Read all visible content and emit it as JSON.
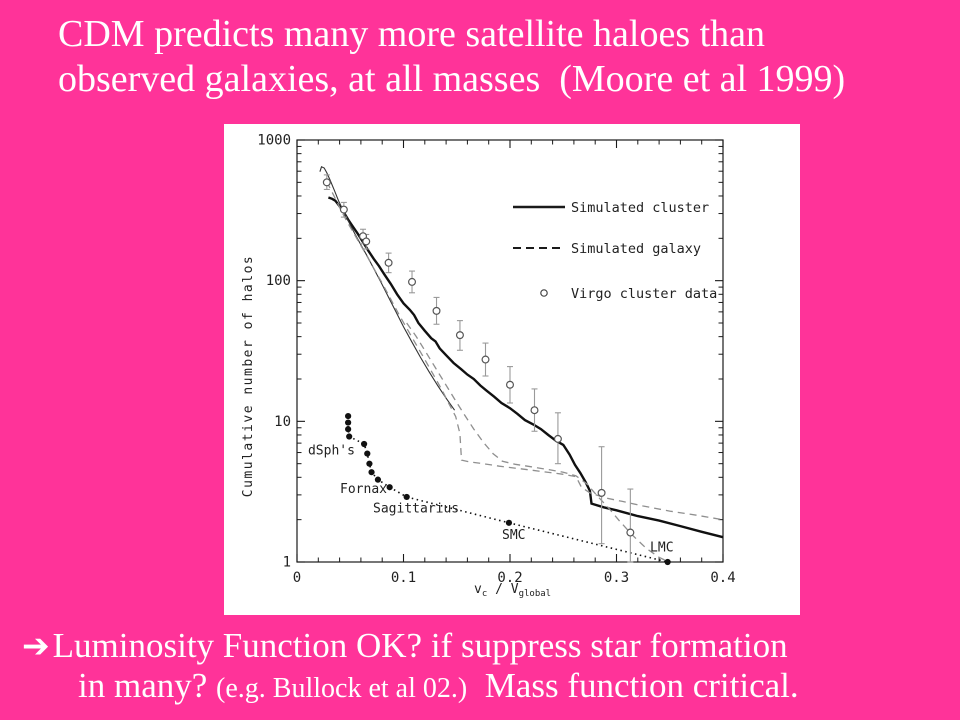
{
  "slide": {
    "background_color": "#ff3399",
    "text_color": "#ffffff",
    "title_line1": "CDM predicts many more satellite haloes than",
    "title_line2": "observed galaxies, at all masses  (Moore et al 1999)",
    "bottom": {
      "arrow_icon": "➔",
      "line1": "Luminosity Function OK? if suppress star formation",
      "line2_main": "in many? ",
      "line2_cite": "(e.g. Bullock et al 02.)",
      "line2_tail": "  Mass function critical."
    }
  },
  "chart_data": {
    "type": "line",
    "title": "",
    "ylabel": "Cumulative number of halos",
    "xlabel_parts": {
      "base1": "v",
      "sub1": "c",
      "mid": " / V",
      "sub2": "global"
    },
    "xlim": [
      0,
      0.4
    ],
    "ylim": [
      1,
      1000
    ],
    "y_scale": "log",
    "x_minor_step": 0.02,
    "x_ticks": [
      {
        "v": 0,
        "label": "0"
      },
      {
        "v": 0.1,
        "label": "0.1"
      },
      {
        "v": 0.2,
        "label": "0.2"
      },
      {
        "v": 0.3,
        "label": "0.3"
      },
      {
        "v": 0.4,
        "label": "0.4"
      }
    ],
    "y_ticks": [
      {
        "n": 1,
        "label": "1"
      },
      {
        "n": 10,
        "label": "10"
      },
      {
        "n": 100,
        "label": "100"
      },
      {
        "n": 1000,
        "label": "1000"
      }
    ],
    "ink_color": "#1a1a1a",
    "gray_color": "#8f8f8f",
    "legend": [
      {
        "label": "Simulated cluster",
        "style": "solid-thick"
      },
      {
        "label": "Simulated galaxy",
        "style": "dashed"
      },
      {
        "label": "Virgo cluster data",
        "style": "open-circle"
      }
    ],
    "series": [
      {
        "name": "simulated-cluster",
        "style": "solid",
        "width": 2.4,
        "color": "#111111",
        "points": [
          [
            0.0295,
            390
          ],
          [
            0.033,
            382
          ],
          [
            0.036,
            370
          ],
          [
            0.04,
            338
          ],
          [
            0.044,
            305
          ],
          [
            0.048,
            272
          ],
          [
            0.052,
            245
          ],
          [
            0.057,
            216
          ],
          [
            0.062,
            188
          ],
          [
            0.067,
            163
          ],
          [
            0.072,
            143
          ],
          [
            0.077,
            127
          ],
          [
            0.082,
            111
          ],
          [
            0.088,
            95
          ],
          [
            0.094,
            80
          ],
          [
            0.1,
            69
          ],
          [
            0.106,
            62
          ],
          [
            0.11,
            57
          ],
          [
            0.114,
            50
          ],
          [
            0.12,
            44
          ],
          [
            0.126,
            39
          ],
          [
            0.13,
            37
          ],
          [
            0.134,
            33
          ],
          [
            0.14,
            29.5
          ],
          [
            0.147,
            26
          ],
          [
            0.154,
            23.5
          ],
          [
            0.16,
            21.5
          ],
          [
            0.166,
            20
          ],
          [
            0.172,
            18
          ],
          [
            0.178,
            16.5
          ],
          [
            0.185,
            15
          ],
          [
            0.192,
            13.5
          ],
          [
            0.2,
            12.4
          ],
          [
            0.207,
            11.3
          ],
          [
            0.214,
            10.2
          ],
          [
            0.222,
            9.5
          ],
          [
            0.229,
            8.8
          ],
          [
            0.236,
            8.0
          ],
          [
            0.243,
            7.3
          ],
          [
            0.25,
            6.8
          ],
          [
            0.256,
            5.8
          ],
          [
            0.261,
            4.9
          ],
          [
            0.266,
            4.3
          ],
          [
            0.271,
            3.7
          ],
          [
            0.275,
            3.2
          ],
          [
            0.2765,
            2.6
          ],
          [
            0.288,
            2.45
          ],
          [
            0.3,
            2.33
          ],
          [
            0.32,
            2.12
          ],
          [
            0.34,
            1.97
          ],
          [
            0.36,
            1.8
          ],
          [
            0.38,
            1.64
          ],
          [
            0.4,
            1.5
          ]
        ]
      },
      {
        "name": "simulated-cluster-thin",
        "style": "solid",
        "width": 1.1,
        "color": "#333333",
        "points": [
          [
            0.0215,
            595
          ],
          [
            0.023,
            645
          ],
          [
            0.0255,
            632
          ],
          [
            0.028,
            585
          ],
          [
            0.031,
            520
          ],
          [
            0.035,
            440
          ],
          [
            0.039,
            370
          ],
          [
            0.044,
            308
          ],
          [
            0.049,
            258
          ],
          [
            0.054,
            218
          ],
          [
            0.06,
            180
          ],
          [
            0.066,
            149
          ],
          [
            0.072,
            122
          ],
          [
            0.079,
            97
          ],
          [
            0.086,
            76
          ],
          [
            0.093,
            60
          ],
          [
            0.1,
            47
          ],
          [
            0.108,
            36.5
          ],
          [
            0.116,
            28.5
          ],
          [
            0.124,
            22.5
          ],
          [
            0.132,
            18
          ],
          [
            0.14,
            14.6
          ],
          [
            0.148,
            12
          ]
        ]
      },
      {
        "name": "simulated-galaxy-a",
        "style": "dashed",
        "width": 1.3,
        "color": "#8f8f8f",
        "points": [
          [
            0.028,
            505
          ],
          [
            0.032,
            440
          ],
          [
            0.037,
            370
          ],
          [
            0.042,
            310
          ],
          [
            0.047,
            262
          ],
          [
            0.053,
            220
          ],
          [
            0.059,
            183
          ],
          [
            0.066,
            148
          ],
          [
            0.073,
            119
          ],
          [
            0.08,
            96
          ],
          [
            0.088,
            74
          ],
          [
            0.096,
            57
          ],
          [
            0.104,
            44.5
          ],
          [
            0.112,
            35
          ],
          [
            0.12,
            27.5
          ],
          [
            0.128,
            21.5
          ],
          [
            0.136,
            16.8
          ],
          [
            0.143,
            13.2
          ],
          [
            0.149,
            10.8
          ],
          [
            0.153,
            8.2
          ],
          [
            0.1545,
            5.3
          ],
          [
            0.162,
            5.15
          ],
          [
            0.175,
            5.0
          ],
          [
            0.19,
            4.8
          ],
          [
            0.21,
            4.6
          ],
          [
            0.23,
            4.4
          ],
          [
            0.25,
            4.2
          ],
          [
            0.262,
            4.05
          ],
          [
            0.267,
            3.4
          ],
          [
            0.275,
            3.1
          ],
          [
            0.29,
            2.85
          ],
          [
            0.305,
            2.7
          ],
          [
            0.325,
            2.5
          ],
          [
            0.35,
            2.3
          ],
          [
            0.375,
            2.15
          ],
          [
            0.4,
            2.0
          ]
        ]
      },
      {
        "name": "simulated-galaxy-b",
        "style": "dashed",
        "width": 1.3,
        "color": "#8f8f8f",
        "points": [
          [
            0.103,
            50
          ],
          [
            0.112,
            40
          ],
          [
            0.121,
            31
          ],
          [
            0.13,
            24
          ],
          [
            0.139,
            18.6
          ],
          [
            0.148,
            14.4
          ],
          [
            0.157,
            11.2
          ],
          [
            0.166,
            8.8
          ],
          [
            0.175,
            7.1
          ],
          [
            0.184,
            5.9
          ],
          [
            0.193,
            5.2
          ],
          [
            0.205,
            4.95
          ],
          [
            0.22,
            4.75
          ],
          [
            0.235,
            4.55
          ],
          [
            0.25,
            4.35
          ],
          [
            0.262,
            4.1
          ],
          [
            0.272,
            3.6
          ],
          [
            0.282,
            2.95
          ],
          [
            0.292,
            2.45
          ],
          [
            0.303,
            1.95
          ],
          [
            0.315,
            1.55
          ],
          [
            0.328,
            1.25
          ],
          [
            0.34,
            1.08
          ],
          [
            0.349,
            1.0
          ]
        ]
      },
      {
        "name": "local-group-dwarfs",
        "style": "dotted-filled",
        "width": 1.6,
        "color": "#111111",
        "points": [
          [
            0.048,
            10.9
          ],
          [
            0.048,
            9.8
          ],
          [
            0.048,
            8.8
          ],
          [
            0.049,
            7.8
          ],
          [
            0.063,
            6.9
          ],
          [
            0.066,
            5.9
          ],
          [
            0.068,
            5.0
          ],
          [
            0.07,
            4.35
          ],
          [
            0.076,
            3.85
          ],
          [
            0.087,
            3.4
          ],
          [
            0.103,
            2.9
          ],
          [
            0.199,
            1.9
          ],
          [
            0.348,
            1.0
          ]
        ]
      }
    ],
    "virgo": {
      "name": "virgo-cluster-data",
      "circle_color": "#555555",
      "bar_color": "#9a9a9a",
      "points": [
        [
          0.028,
          500,
          445,
          565
        ],
        [
          0.044,
          320,
          283,
          360
        ],
        [
          0.062,
          207,
          183,
          232
        ],
        [
          0.065,
          190,
          168,
          213
        ],
        [
          0.086,
          134,
          114,
          157
        ],
        [
          0.108,
          98,
          82,
          117
        ],
        [
          0.131,
          61,
          49,
          76
        ],
        [
          0.153,
          41,
          32,
          52
        ],
        [
          0.177,
          27.5,
          21,
          36
        ],
        [
          0.2,
          18.2,
          13.5,
          24.5
        ],
        [
          0.223,
          12,
          8.5,
          17
        ],
        [
          0.245,
          7.5,
          5,
          11.5
        ],
        [
          0.286,
          3.1,
          1.35,
          6.6
        ],
        [
          0.313,
          1.62,
          1.0,
          3.3
        ]
      ]
    },
    "annotations": [
      {
        "label": "dSph's",
        "v": 0.0103,
        "n": 6.2
      },
      {
        "label": "Fornax",
        "v": 0.0404,
        "n": 3.3
      },
      {
        "label": "Sagittarius",
        "v": 0.0714,
        "n": 2.4
      },
      {
        "label": "SMC",
        "v": 0.1925,
        "n": 1.55
      },
      {
        "label": "LMC",
        "v": 0.3315,
        "n": 1.27
      }
    ]
  }
}
